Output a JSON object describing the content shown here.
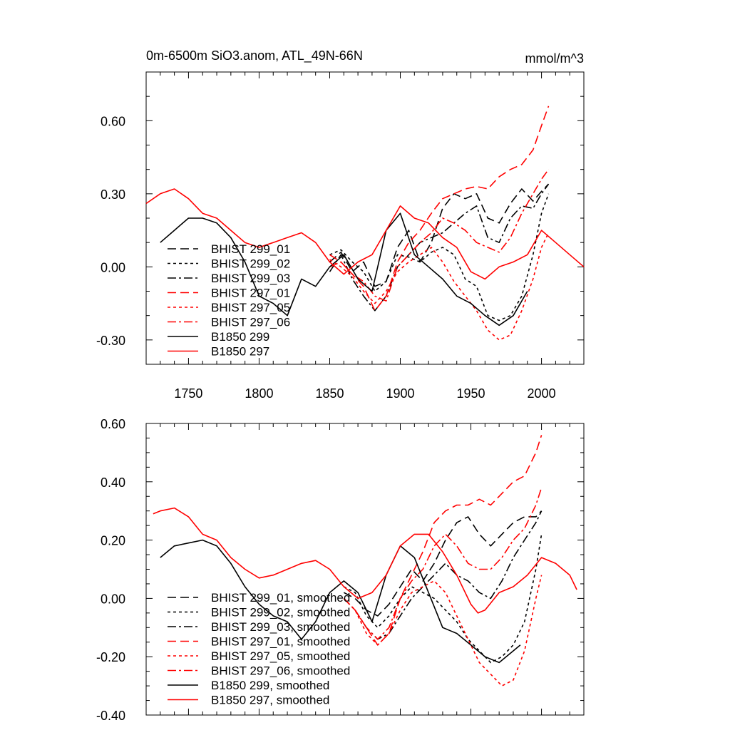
{
  "colors": {
    "black": "#000000",
    "red": "#ff0000"
  },
  "chart_data": [
    {
      "type": "line",
      "title_left": "0m-6500m SiO3.anom, ATL_49N-66N",
      "title_right": "mmol/m^3",
      "xlim": [
        1720,
        2030
      ],
      "ylim": [
        -0.4,
        0.8
      ],
      "x_ticks": [
        1750,
        1800,
        1850,
        1900,
        1950,
        2000
      ],
      "x_tick_labels": [
        "1750",
        "1800",
        "1850",
        "1900",
        "1950",
        "2000"
      ],
      "y_ticks": [
        0.6,
        0.3,
        0.0,
        -0.3
      ],
      "y_tick_labels": [
        "0.60",
        "0.30",
        "0.00",
        "-0.30"
      ],
      "legend_position": "lower-left",
      "series": [
        {
          "name": "BHIST 299_01",
          "color": "black",
          "dash": "long-dash",
          "x": [
            1850,
            1858,
            1866,
            1874,
            1882,
            1890,
            1898,
            1906,
            1914,
            1922,
            1930,
            1938,
            1946,
            1954,
            1962,
            1970,
            1978,
            1986,
            1994,
            2000,
            2005
          ],
          "y": [
            0.02,
            0.06,
            -0.02,
            0.02,
            -0.08,
            -0.06,
            0.08,
            0.15,
            0.02,
            0.1,
            0.24,
            0.3,
            0.28,
            0.3,
            0.2,
            0.18,
            0.26,
            0.32,
            0.27,
            0.31,
            0.34
          ]
        },
        {
          "name": "BHIST 299_02",
          "color": "black",
          "dash": "short-dash",
          "x": [
            1850,
            1858,
            1866,
            1874,
            1882,
            1890,
            1898,
            1906,
            1914,
            1922,
            1930,
            1938,
            1946,
            1954,
            1962,
            1970,
            1978,
            1986,
            1994,
            2000,
            2005
          ],
          "y": [
            0.05,
            0.07,
            0.02,
            -0.02,
            -0.1,
            -0.06,
            0.05,
            0.04,
            0.02,
            0.06,
            0.08,
            0.05,
            -0.05,
            -0.08,
            -0.2,
            -0.22,
            -0.2,
            -0.12,
            0.05,
            0.22,
            0.3
          ]
        },
        {
          "name": "BHIST 299_03",
          "color": "black",
          "dash": "dash-dot",
          "x": [
            1850,
            1858,
            1866,
            1874,
            1882,
            1890,
            1898,
            1906,
            1914,
            1922,
            1930,
            1938,
            1946,
            1954,
            1962,
            1970,
            1978,
            1986,
            1994,
            2000,
            2005
          ],
          "y": [
            -0.02,
            0.05,
            -0.05,
            -0.12,
            -0.18,
            -0.12,
            0.0,
            0.05,
            0.1,
            0.12,
            0.14,
            0.18,
            0.22,
            0.25,
            0.12,
            0.1,
            0.2,
            0.25,
            0.24,
            0.3,
            0.34
          ]
        },
        {
          "name": "BHIST 297_01",
          "color": "red",
          "dash": "long-dash",
          "x": [
            1850,
            1858,
            1866,
            1874,
            1882,
            1890,
            1898,
            1906,
            1914,
            1922,
            1930,
            1938,
            1946,
            1954,
            1962,
            1970,
            1978,
            1986,
            1994,
            2000,
            2005
          ],
          "y": [
            0.05,
            0.02,
            -0.03,
            -0.08,
            -0.18,
            -0.12,
            0.02,
            0.1,
            0.15,
            0.22,
            0.28,
            0.3,
            0.32,
            0.33,
            0.32,
            0.37,
            0.4,
            0.42,
            0.48,
            0.58,
            0.66
          ]
        },
        {
          "name": "BHIST 297_05",
          "color": "red",
          "dash": "short-dash",
          "x": [
            1850,
            1858,
            1866,
            1874,
            1882,
            1890,
            1898,
            1906,
            1914,
            1922,
            1930,
            1938,
            1946,
            1954,
            1962,
            1970,
            1978,
            1986,
            1994,
            2000,
            2005
          ],
          "y": [
            0.03,
            0.0,
            -0.04,
            -0.1,
            -0.15,
            -0.1,
            -0.02,
            0.02,
            0.05,
            0.08,
            0.02,
            -0.06,
            -0.12,
            -0.18,
            -0.26,
            -0.3,
            -0.28,
            -0.18,
            -0.05,
            0.08,
            0.14
          ]
        },
        {
          "name": "BHIST 297_06",
          "color": "red",
          "dash": "dash-dot",
          "x": [
            1850,
            1858,
            1866,
            1874,
            1882,
            1890,
            1898,
            1906,
            1914,
            1922,
            1930,
            1938,
            1946,
            1954,
            1962,
            1970,
            1978,
            1986,
            1994,
            2000,
            2005
          ],
          "y": [
            0.0,
            0.02,
            -0.03,
            -0.06,
            -0.12,
            -0.14,
            0.0,
            0.05,
            0.1,
            0.14,
            0.2,
            0.18,
            0.15,
            0.1,
            0.08,
            0.06,
            0.12,
            0.22,
            0.3,
            0.36,
            0.4
          ]
        },
        {
          "name": "B1850 299",
          "color": "black",
          "dash": "solid",
          "x": [
            1730,
            1740,
            1750,
            1760,
            1770,
            1780,
            1790,
            1800,
            1810,
            1820,
            1830,
            1840,
            1850,
            1860,
            1870,
            1880,
            1890,
            1900,
            1910,
            1920,
            1930,
            1940,
            1950,
            1960,
            1970,
            1980,
            1990
          ],
          "y": [
            0.1,
            0.15,
            0.2,
            0.2,
            0.18,
            0.12,
            0.02,
            -0.12,
            -0.15,
            -0.2,
            -0.05,
            -0.08,
            0.0,
            0.05,
            -0.05,
            -0.1,
            0.15,
            0.22,
            0.05,
            0.0,
            -0.05,
            -0.12,
            -0.15,
            -0.2,
            -0.24,
            -0.2,
            -0.1
          ]
        },
        {
          "name": "B1850 297",
          "color": "red",
          "dash": "solid",
          "x": [
            1720,
            1730,
            1740,
            1750,
            1760,
            1770,
            1780,
            1790,
            1800,
            1810,
            1820,
            1830,
            1840,
            1850,
            1860,
            1870,
            1880,
            1890,
            1900,
            1910,
            1920,
            1930,
            1940,
            1950,
            1960,
            1970,
            1980,
            1990,
            2000,
            2010,
            2020,
            2030
          ],
          "y": [
            0.26,
            0.3,
            0.32,
            0.28,
            0.22,
            0.2,
            0.15,
            0.1,
            0.08,
            0.1,
            0.12,
            0.14,
            0.1,
            0.02,
            -0.03,
            0.02,
            0.05,
            0.15,
            0.25,
            0.2,
            0.18,
            0.12,
            0.08,
            -0.02,
            -0.05,
            0.0,
            0.02,
            0.05,
            0.15,
            0.1,
            0.05,
            0.0
          ]
        }
      ]
    },
    {
      "type": "line",
      "xlim": [
        1720,
        2030
      ],
      "ylim": [
        -0.4,
        0.6
      ],
      "x_ticks": [
        1750,
        1800,
        1850,
        1900,
        1950,
        2000
      ],
      "y_ticks": [
        0.6,
        0.4,
        0.2,
        0.0,
        -0.2,
        -0.4
      ],
      "y_tick_labels": [
        "0.60",
        "0.40",
        "0.20",
        "0.00",
        "-0.20",
        "-0.40"
      ],
      "legend_position": "lower-left",
      "series": [
        {
          "name": "BHIST 299_01, smoothed",
          "color": "black",
          "dash": "long-dash",
          "x": [
            1860,
            1868,
            1876,
            1884,
            1892,
            1900,
            1908,
            1916,
            1924,
            1932,
            1940,
            1948,
            1956,
            1964,
            1972,
            1980,
            1988,
            1996,
            2000
          ],
          "y": [
            0.02,
            0.0,
            -0.04,
            -0.06,
            -0.02,
            0.04,
            0.1,
            0.06,
            0.12,
            0.2,
            0.26,
            0.28,
            0.22,
            0.18,
            0.22,
            0.26,
            0.28,
            0.28,
            0.3
          ]
        },
        {
          "name": "BHIST 299_02, smoothed",
          "color": "black",
          "dash": "short-dash",
          "x": [
            1860,
            1868,
            1876,
            1884,
            1892,
            1900,
            1908,
            1916,
            1924,
            1932,
            1940,
            1948,
            1956,
            1964,
            1972,
            1980,
            1988,
            1996,
            2000
          ],
          "y": [
            0.04,
            0.02,
            -0.06,
            -0.1,
            -0.06,
            0.0,
            0.04,
            0.02,
            0.0,
            -0.04,
            -0.08,
            -0.14,
            -0.18,
            -0.22,
            -0.2,
            -0.16,
            -0.08,
            0.1,
            0.22
          ]
        },
        {
          "name": "BHIST 299_03, smoothed",
          "color": "black",
          "dash": "dash-dot",
          "x": [
            1860,
            1868,
            1876,
            1884,
            1892,
            1900,
            1908,
            1916,
            1924,
            1932,
            1940,
            1948,
            1956,
            1964,
            1972,
            1980,
            1988,
            1996,
            2000
          ],
          "y": [
            0.0,
            -0.04,
            -0.1,
            -0.14,
            -0.12,
            -0.06,
            0.0,
            0.04,
            0.08,
            0.12,
            0.08,
            0.06,
            0.02,
            0.0,
            0.06,
            0.14,
            0.2,
            0.26,
            0.3
          ]
        },
        {
          "name": "BHIST 297_01, smoothed",
          "color": "red",
          "dash": "long-dash",
          "x": [
            1860,
            1868,
            1876,
            1884,
            1892,
            1900,
            1908,
            1916,
            1924,
            1932,
            1940,
            1948,
            1956,
            1964,
            1972,
            1980,
            1988,
            1996,
            2000
          ],
          "y": [
            0.0,
            -0.04,
            -0.1,
            -0.16,
            -0.12,
            0.0,
            0.08,
            0.16,
            0.26,
            0.3,
            0.32,
            0.32,
            0.34,
            0.32,
            0.36,
            0.4,
            0.42,
            0.5,
            0.56
          ]
        },
        {
          "name": "BHIST 297_05, smoothed",
          "color": "red",
          "dash": "short-dash",
          "x": [
            1860,
            1868,
            1876,
            1884,
            1892,
            1900,
            1908,
            1916,
            1924,
            1932,
            1940,
            1948,
            1956,
            1964,
            1972,
            1980,
            1988,
            1996,
            2000
          ],
          "y": [
            0.0,
            -0.04,
            -0.12,
            -0.16,
            -0.12,
            -0.04,
            0.02,
            0.04,
            0.06,
            0.02,
            -0.06,
            -0.14,
            -0.22,
            -0.26,
            -0.3,
            -0.28,
            -0.18,
            0.0,
            0.08
          ]
        },
        {
          "name": "BHIST 297_06, smoothed",
          "color": "red",
          "dash": "dash-dot",
          "x": [
            1860,
            1868,
            1876,
            1884,
            1892,
            1900,
            1908,
            1916,
            1924,
            1932,
            1940,
            1948,
            1956,
            1964,
            1972,
            1980,
            1988,
            1996,
            2000
          ],
          "y": [
            0.0,
            -0.04,
            -0.1,
            -0.14,
            -0.1,
            0.0,
            0.06,
            0.1,
            0.18,
            0.22,
            0.18,
            0.12,
            0.1,
            0.1,
            0.14,
            0.2,
            0.24,
            0.32,
            0.38
          ]
        },
        {
          "name": "B1850 299, smoothed",
          "color": "black",
          "dash": "solid",
          "x": [
            1730,
            1740,
            1750,
            1760,
            1770,
            1780,
            1790,
            1800,
            1810,
            1820,
            1830,
            1840,
            1850,
            1860,
            1870,
            1880,
            1890,
            1900,
            1910,
            1920,
            1930,
            1940,
            1950,
            1960,
            1970,
            1980,
            1985
          ],
          "y": [
            0.14,
            0.18,
            0.19,
            0.2,
            0.18,
            0.12,
            0.04,
            -0.02,
            -0.06,
            -0.08,
            -0.14,
            -0.08,
            0.02,
            0.06,
            0.02,
            -0.08,
            0.08,
            0.18,
            0.14,
            0.02,
            -0.1,
            -0.12,
            -0.16,
            -0.2,
            -0.22,
            -0.18,
            -0.16
          ]
        },
        {
          "name": "B1850 297, smoothed",
          "color": "red",
          "dash": "solid",
          "x": [
            1725,
            1730,
            1740,
            1750,
            1760,
            1770,
            1780,
            1790,
            1800,
            1810,
            1820,
            1830,
            1840,
            1850,
            1860,
            1870,
            1880,
            1890,
            1900,
            1910,
            1920,
            1930,
            1940,
            1950,
            1955,
            1960,
            1970,
            1980,
            1990,
            2000,
            2010,
            2020,
            2025
          ],
          "y": [
            0.29,
            0.3,
            0.31,
            0.28,
            0.22,
            0.2,
            0.14,
            0.1,
            0.07,
            0.08,
            0.1,
            0.12,
            0.13,
            0.1,
            0.04,
            0.0,
            0.02,
            0.08,
            0.18,
            0.22,
            0.22,
            0.16,
            0.08,
            -0.02,
            -0.05,
            -0.04,
            0.02,
            0.04,
            0.08,
            0.14,
            0.12,
            0.08,
            0.03
          ]
        }
      ]
    }
  ]
}
